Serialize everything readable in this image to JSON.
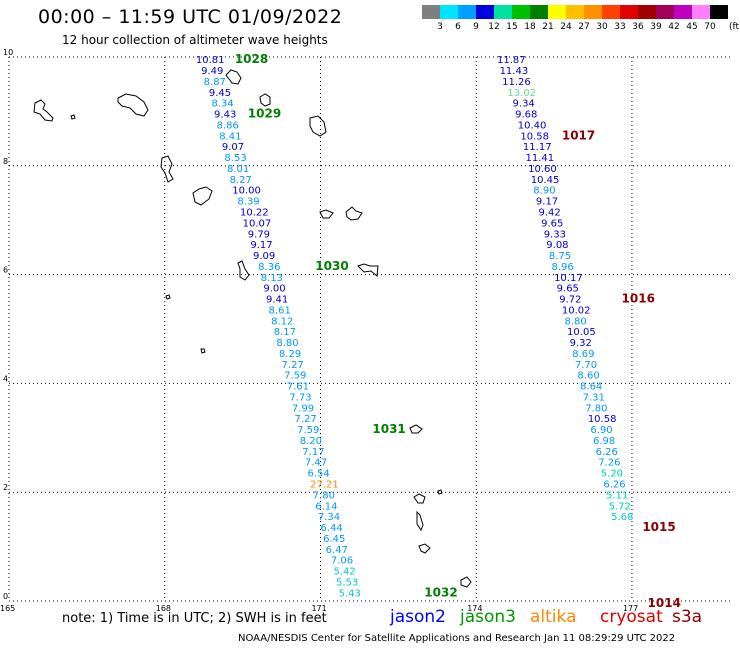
{
  "header": {
    "title": "00:00 – 11:59 UTC 01/09/2022",
    "subtitle": "12 hour collection of altimeter wave heights"
  },
  "scale": {
    "unit": "(ft)",
    "bins": [
      {
        "label": "",
        "color": "#7f7f7f"
      },
      {
        "label": "3",
        "color": "#00e5ff"
      },
      {
        "label": "6",
        "color": "#00a0ff"
      },
      {
        "label": "9",
        "color": "#0000e0"
      },
      {
        "label": "12",
        "color": "#00e0a0"
      },
      {
        "label": "15",
        "color": "#00c000"
      },
      {
        "label": "18",
        "color": "#008000"
      },
      {
        "label": "21",
        "color": "#ffff00"
      },
      {
        "label": "24",
        "color": "#ffc000"
      },
      {
        "label": "27",
        "color": "#ff9000"
      },
      {
        "label": "30",
        "color": "#ff4000"
      },
      {
        "label": "33",
        "color": "#e00000"
      },
      {
        "label": "36",
        "color": "#a00000"
      },
      {
        "label": "39",
        "color": "#a0005a"
      },
      {
        "label": "42",
        "color": "#c000c0"
      },
      {
        "label": "45",
        "color": "#ff80ff"
      },
      {
        "label": "70",
        "color": "#000000"
      }
    ]
  },
  "axes": {
    "y_labels": [
      "0",
      "2",
      "4",
      "6",
      "8",
      "10"
    ],
    "x_labels": [
      "165",
      "168",
      "171",
      "174",
      "177"
    ],
    "lat_range": [
      0,
      10
    ],
    "lon_range": [
      165,
      178.5
    ]
  },
  "colors": {
    "c9": "#0000cc",
    "c6": "#0099ff",
    "c3": "#00cccc",
    "c12": "#66dd88",
    "c24": "#ff8800",
    "pressure": "#008000",
    "pressure_low": "#880000"
  },
  "tracks": {
    "west": [
      {
        "lon": 168.6,
        "lat": 9.96,
        "v": "10.81",
        "c": "c9"
      },
      {
        "lon": 168.7,
        "lat": 9.76,
        "v": "9.49",
        "c": "c9"
      },
      {
        "lon": 168.75,
        "lat": 9.56,
        "v": "8.87",
        "c": "c6"
      },
      {
        "lon": 168.85,
        "lat": 9.36,
        "v": "9.45",
        "c": "c9"
      },
      {
        "lon": 168.9,
        "lat": 9.16,
        "v": "8.34",
        "c": "c6"
      },
      {
        "lon": 168.95,
        "lat": 8.96,
        "v": "9.43",
        "c": "c9"
      },
      {
        "lon": 169.0,
        "lat": 8.76,
        "v": "8.86",
        "c": "c6"
      },
      {
        "lon": 169.05,
        "lat": 8.56,
        "v": "8.41",
        "c": "c6"
      },
      {
        "lon": 169.1,
        "lat": 8.36,
        "v": "9.07",
        "c": "c9"
      },
      {
        "lon": 169.15,
        "lat": 8.16,
        "v": "8.53",
        "c": "c6"
      },
      {
        "lon": 169.2,
        "lat": 7.96,
        "v": "8.01",
        "c": "c6"
      },
      {
        "lon": 169.25,
        "lat": 7.76,
        "v": "8.27",
        "c": "c6"
      },
      {
        "lon": 169.3,
        "lat": 7.56,
        "v": "10.00",
        "c": "c9"
      },
      {
        "lon": 169.4,
        "lat": 7.36,
        "v": "8.39",
        "c": "c6"
      },
      {
        "lon": 169.45,
        "lat": 7.16,
        "v": "10.22",
        "c": "c9"
      },
      {
        "lon": 169.5,
        "lat": 6.96,
        "v": "10.07",
        "c": "c9"
      },
      {
        "lon": 169.6,
        "lat": 6.76,
        "v": "9.79",
        "c": "c9"
      },
      {
        "lon": 169.65,
        "lat": 6.56,
        "v": "9.17",
        "c": "c9"
      },
      {
        "lon": 169.7,
        "lat": 6.36,
        "v": "9.09",
        "c": "c9"
      },
      {
        "lon": 169.8,
        "lat": 6.16,
        "v": "8.36",
        "c": "c6"
      },
      {
        "lon": 169.85,
        "lat": 5.96,
        "v": "8.13",
        "c": "c6"
      },
      {
        "lon": 169.9,
        "lat": 5.76,
        "v": "9.00",
        "c": "c9"
      },
      {
        "lon": 169.95,
        "lat": 5.56,
        "v": "9.41",
        "c": "c9"
      },
      {
        "lon": 170.0,
        "lat": 5.36,
        "v": "8.61",
        "c": "c6"
      },
      {
        "lon": 170.05,
        "lat": 5.16,
        "v": "8.12",
        "c": "c6"
      },
      {
        "lon": 170.1,
        "lat": 4.96,
        "v": "8.17",
        "c": "c6"
      },
      {
        "lon": 170.15,
        "lat": 4.76,
        "v": "8.80",
        "c": "c6"
      },
      {
        "lon": 170.2,
        "lat": 4.56,
        "v": "8.29",
        "c": "c6"
      },
      {
        "lon": 170.25,
        "lat": 4.36,
        "v": "7.27",
        "c": "c6"
      },
      {
        "lon": 170.3,
        "lat": 4.16,
        "v": "7.59",
        "c": "c6"
      },
      {
        "lon": 170.35,
        "lat": 3.96,
        "v": "7.61",
        "c": "c6"
      },
      {
        "lon": 170.4,
        "lat": 3.76,
        "v": "7.73",
        "c": "c6"
      },
      {
        "lon": 170.45,
        "lat": 3.56,
        "v": "7.99",
        "c": "c6"
      },
      {
        "lon": 170.5,
        "lat": 3.36,
        "v": "7.27",
        "c": "c6"
      },
      {
        "lon": 170.55,
        "lat": 3.16,
        "v": "7.59",
        "c": "c6"
      },
      {
        "lon": 170.6,
        "lat": 2.96,
        "v": "8.20",
        "c": "c6"
      },
      {
        "lon": 170.65,
        "lat": 2.76,
        "v": "7.17",
        "c": "c6"
      },
      {
        "lon": 170.7,
        "lat": 2.56,
        "v": "7.47",
        "c": "c6"
      },
      {
        "lon": 170.75,
        "lat": 2.36,
        "v": "6.54",
        "c": "c6"
      },
      {
        "lon": 170.8,
        "lat": 2.16,
        "v": "27.21",
        "c": "c24"
      },
      {
        "lon": 170.85,
        "lat": 1.96,
        "v": "7.80",
        "c": "c6"
      },
      {
        "lon": 170.9,
        "lat": 1.76,
        "v": "6.14",
        "c": "c6"
      },
      {
        "lon": 170.95,
        "lat": 1.56,
        "v": "7.34",
        "c": "c6"
      },
      {
        "lon": 171.0,
        "lat": 1.36,
        "v": "6.44",
        "c": "c6"
      },
      {
        "lon": 171.05,
        "lat": 1.16,
        "v": "6.45",
        "c": "c6"
      },
      {
        "lon": 171.1,
        "lat": 0.96,
        "v": "6.47",
        "c": "c6"
      },
      {
        "lon": 171.2,
        "lat": 0.76,
        "v": "7.06",
        "c": "c6"
      },
      {
        "lon": 171.25,
        "lat": 0.56,
        "v": "5.42",
        "c": "c3"
      },
      {
        "lon": 171.3,
        "lat": 0.36,
        "v": "5.53",
        "c": "c3"
      },
      {
        "lon": 171.35,
        "lat": 0.16,
        "v": "5.43",
        "c": "c3"
      }
    ],
    "east": [
      {
        "lon": 174.4,
        "lat": 9.96,
        "v": "11.87",
        "c": "c9"
      },
      {
        "lon": 174.45,
        "lat": 9.76,
        "v": "11.43",
        "c": "c9"
      },
      {
        "lon": 174.5,
        "lat": 9.56,
        "v": "11.26",
        "c": "c9"
      },
      {
        "lon": 174.6,
        "lat": 9.36,
        "v": "13.02",
        "c": "c12"
      },
      {
        "lon": 174.7,
        "lat": 9.16,
        "v": "9.34",
        "c": "c9"
      },
      {
        "lon": 174.75,
        "lat": 8.96,
        "v": "9.68",
        "c": "c9"
      },
      {
        "lon": 174.8,
        "lat": 8.76,
        "v": "10.40",
        "c": "c9"
      },
      {
        "lon": 174.85,
        "lat": 8.56,
        "v": "10.58",
        "c": "c9"
      },
      {
        "lon": 174.9,
        "lat": 8.36,
        "v": "11.17",
        "c": "c9"
      },
      {
        "lon": 174.95,
        "lat": 8.16,
        "v": "11.41",
        "c": "c9"
      },
      {
        "lon": 175.0,
        "lat": 7.96,
        "v": "10.60",
        "c": "c9"
      },
      {
        "lon": 175.05,
        "lat": 7.76,
        "v": "10.45",
        "c": "c9"
      },
      {
        "lon": 175.1,
        "lat": 7.56,
        "v": "8.90",
        "c": "c6"
      },
      {
        "lon": 175.15,
        "lat": 7.36,
        "v": "9.17",
        "c": "c9"
      },
      {
        "lon": 175.2,
        "lat": 7.16,
        "v": "9.42",
        "c": "c9"
      },
      {
        "lon": 175.25,
        "lat": 6.96,
        "v": "9.65",
        "c": "c9"
      },
      {
        "lon": 175.3,
        "lat": 6.76,
        "v": "9.33",
        "c": "c9"
      },
      {
        "lon": 175.35,
        "lat": 6.56,
        "v": "9.08",
        "c": "c9"
      },
      {
        "lon": 175.4,
        "lat": 6.36,
        "v": "8.75",
        "c": "c6"
      },
      {
        "lon": 175.45,
        "lat": 6.16,
        "v": "8.96",
        "c": "c6"
      },
      {
        "lon": 175.5,
        "lat": 5.96,
        "v": "10.17",
        "c": "c9"
      },
      {
        "lon": 175.55,
        "lat": 5.76,
        "v": "9.65",
        "c": "c9"
      },
      {
        "lon": 175.6,
        "lat": 5.56,
        "v": "9.72",
        "c": "c9"
      },
      {
        "lon": 175.65,
        "lat": 5.36,
        "v": "10.02",
        "c": "c9"
      },
      {
        "lon": 175.7,
        "lat": 5.16,
        "v": "8.80",
        "c": "c6"
      },
      {
        "lon": 175.75,
        "lat": 4.96,
        "v": "10.05",
        "c": "c9"
      },
      {
        "lon": 175.8,
        "lat": 4.76,
        "v": "9.32",
        "c": "c9"
      },
      {
        "lon": 175.85,
        "lat": 4.56,
        "v": "8.69",
        "c": "c6"
      },
      {
        "lon": 175.9,
        "lat": 4.36,
        "v": "7.70",
        "c": "c6"
      },
      {
        "lon": 175.95,
        "lat": 4.16,
        "v": "8.60",
        "c": "c6"
      },
      {
        "lon": 176.0,
        "lat": 3.96,
        "v": "8.64",
        "c": "c6"
      },
      {
        "lon": 176.05,
        "lat": 3.76,
        "v": "7.31",
        "c": "c6"
      },
      {
        "lon": 176.1,
        "lat": 3.56,
        "v": "7.80",
        "c": "c6"
      },
      {
        "lon": 176.15,
        "lat": 3.36,
        "v": "10.58",
        "c": "c9"
      },
      {
        "lon": 176.2,
        "lat": 3.16,
        "v": "6.90",
        "c": "c6"
      },
      {
        "lon": 176.25,
        "lat": 2.96,
        "v": "6.98",
        "c": "c6"
      },
      {
        "lon": 176.3,
        "lat": 2.76,
        "v": "6.26",
        "c": "c6"
      },
      {
        "lon": 176.35,
        "lat": 2.56,
        "v": "7.26",
        "c": "c6"
      },
      {
        "lon": 176.4,
        "lat": 2.36,
        "v": "5.20",
        "c": "c3"
      },
      {
        "lon": 176.45,
        "lat": 2.16,
        "v": "6.26",
        "c": "c6"
      },
      {
        "lon": 176.5,
        "lat": 1.96,
        "v": "5.11",
        "c": "c3"
      },
      {
        "lon": 176.55,
        "lat": 1.76,
        "v": "5.72",
        "c": "c3"
      },
      {
        "lon": 176.6,
        "lat": 1.56,
        "v": "5.68",
        "c": "c3"
      }
    ]
  },
  "pressures": [
    {
      "lon": 169.35,
      "lat": 9.96,
      "v": "1028",
      "c": "pressure"
    },
    {
      "lon": 169.6,
      "lat": 8.96,
      "v": "1029",
      "c": "pressure"
    },
    {
      "lon": 170.9,
      "lat": 6.16,
      "v": "1030",
      "c": "pressure"
    },
    {
      "lon": 172.0,
      "lat": 3.16,
      "v": "1031",
      "c": "pressure"
    },
    {
      "lon": 173.0,
      "lat": 0.16,
      "v": "1032",
      "c": "pressure"
    },
    {
      "lon": 175.65,
      "lat": 8.56,
      "v": "1017",
      "c": "pressure_low"
    },
    {
      "lon": 176.8,
      "lat": 5.56,
      "v": "1016",
      "c": "pressure_low"
    },
    {
      "lon": 177.2,
      "lat": 1.36,
      "v": "1015",
      "c": "pressure_low"
    },
    {
      "lon": 177.3,
      "lat": -0.04,
      "v": "1014",
      "c": "pressure_low"
    }
  ],
  "note": "note:  1) Time is in UTC;  2) SWH is in feet",
  "legend": [
    {
      "label": "jason2",
      "color": "#0000ff"
    },
    {
      "label": "jason3",
      "color": "#009900"
    },
    {
      "label": "altika",
      "color": "#ff8800"
    },
    {
      "label": "cryosat",
      "color": "#dd0000"
    },
    {
      "label": "s3a",
      "color": "#880000"
    }
  ],
  "credit": "NOAA/NESDIS Center for Satellite Applications and Research    Jan 11 08:29:29 UTC 2022"
}
